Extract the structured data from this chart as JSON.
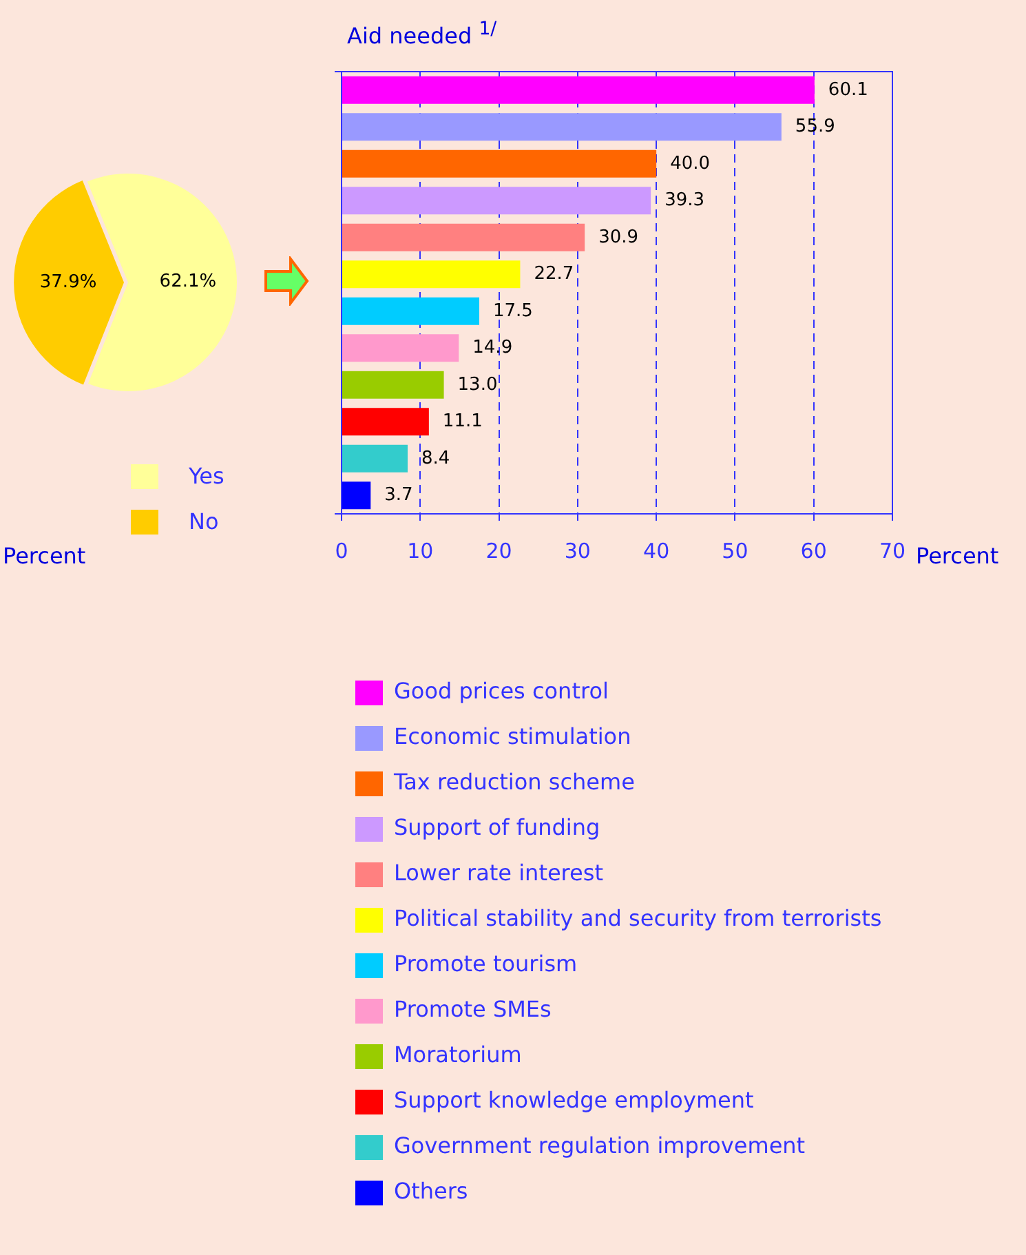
{
  "chart_data": [
    {
      "type": "pie",
      "categories": [
        "Yes",
        "No"
      ],
      "values": [
        62.1,
        37.9
      ],
      "colors": [
        "#ffff99",
        "#ffcc00"
      ],
      "value_labels": [
        "62.1%",
        "37.9%"
      ],
      "legend": "bottom",
      "annotations": [
        "Percent"
      ]
    },
    {
      "type": "bar",
      "orientation": "horizontal",
      "title": "Aid needed $^{1/}$",
      "xlabel": "Percent",
      "categories": [
        null
      ],
      "series": [
        {
          "name": "Good prices control",
          "color": "#ff00ff",
          "values": [
            60.1
          ],
          "value_labels": [
            "60.1"
          ]
        },
        {
          "name": "Economic stimulation",
          "color": "#9999ff",
          "values": [
            55.9
          ],
          "value_labels": [
            "55.9"
          ]
        },
        {
          "name": "Tax reduction scheme",
          "color": "#ff6600",
          "values": [
            40.0
          ],
          "value_labels": [
            "40.0"
          ]
        },
        {
          "name": "Support of funding",
          "color": "#cc99ff",
          "values": [
            39.3
          ],
          "value_labels": [
            "39.3"
          ]
        },
        {
          "name": "Lower rate interest",
          "color": "#ff8080",
          "values": [
            30.9
          ],
          "value_labels": [
            "30.9"
          ]
        },
        {
          "name": "Political stability and security from terrorists",
          "color": "#ffff00",
          "values": [
            22.7
          ],
          "value_labels": [
            "22.7"
          ]
        },
        {
          "name": "Promote tourism",
          "color": "#00ccff",
          "values": [
            17.5
          ],
          "value_labels": [
            "17.5"
          ]
        },
        {
          "name": "Promote SMEs",
          "color": "#ff99cc",
          "values": [
            14.9
          ],
          "value_labels": [
            "14.9"
          ]
        },
        {
          "name": "Moratorium",
          "color": "#99cc00",
          "values": [
            13.0
          ],
          "value_labels": [
            "13.0"
          ]
        },
        {
          "name": "Support knowledge employment",
          "color": "#ff0000",
          "values": [
            11.1
          ],
          "value_labels": [
            "11.1"
          ]
        },
        {
          "name": "Government regulation improvement",
          "color": "#33cccc",
          "values": [
            8.4
          ],
          "value_labels": [
            "8.4"
          ]
        },
        {
          "name": "Others",
          "color": "#0000ff",
          "values": [
            3.7
          ],
          "value_labels": [
            "3.7"
          ]
        }
      ],
      "xlim": [
        0,
        70
      ],
      "xticks": [
        0,
        10,
        20,
        30,
        40,
        50,
        60,
        70
      ],
      "grid": "x",
      "tick_labels": "x",
      "legend": "bottom"
    }
  ]
}
